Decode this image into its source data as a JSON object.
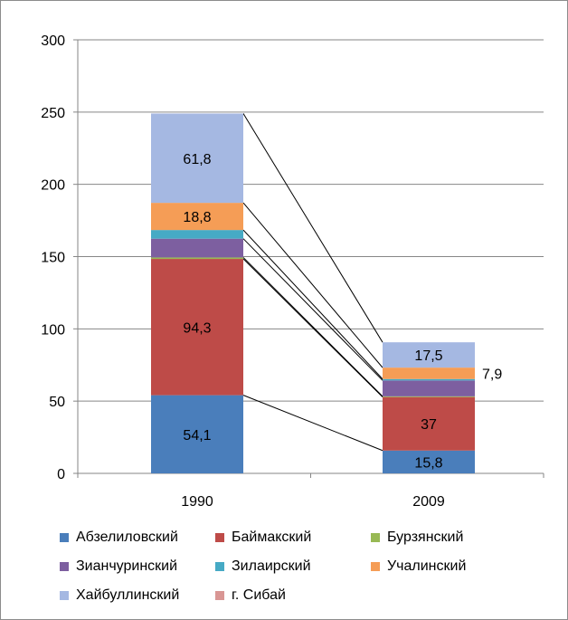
{
  "chart_data": {
    "type": "bar",
    "stacked": true,
    "categories": [
      "1990",
      "2009"
    ],
    "ylim": [
      0,
      300
    ],
    "yticks": [
      0,
      50,
      100,
      150,
      200,
      250,
      300
    ],
    "grid": true,
    "legend_position": "bottom",
    "series": [
      {
        "name": "Абзелиловский",
        "color": "#4a7ebb",
        "values": [
          54.1,
          15.8
        ],
        "labels": [
          "54,1",
          "15,8"
        ]
      },
      {
        "name": "Баймакский",
        "color": "#be4b48",
        "values": [
          94.3,
          37
        ],
        "labels": [
          "94,3",
          "37"
        ]
      },
      {
        "name": "Бурзянский",
        "color": "#98b954",
        "values": [
          1.0,
          0.5
        ],
        "labels": [
          "",
          ""
        ]
      },
      {
        "name": "Зианчуринский",
        "color": "#7d5fa0",
        "values": [
          13.0,
          11.0
        ],
        "labels": [
          "",
          ""
        ]
      },
      {
        "name": "Зилаирский",
        "color": "#46aac5",
        "values": [
          6.0,
          1.0
        ],
        "labels": [
          "",
          ""
        ]
      },
      {
        "name": "Учалинский",
        "color": "#f59d56",
        "values": [
          18.8,
          7.9
        ],
        "labels": [
          "18,8",
          "7,9"
        ]
      },
      {
        "name": "Хайбуллинский",
        "color": "#a5b8e2",
        "values": [
          61.8,
          17.5
        ],
        "labels": [
          "61,8",
          "17,5"
        ]
      },
      {
        "name": "г. Сибай",
        "color": "#d99694",
        "values": [
          0,
          0
        ],
        "labels": [
          "",
          ""
        ]
      }
    ]
  }
}
